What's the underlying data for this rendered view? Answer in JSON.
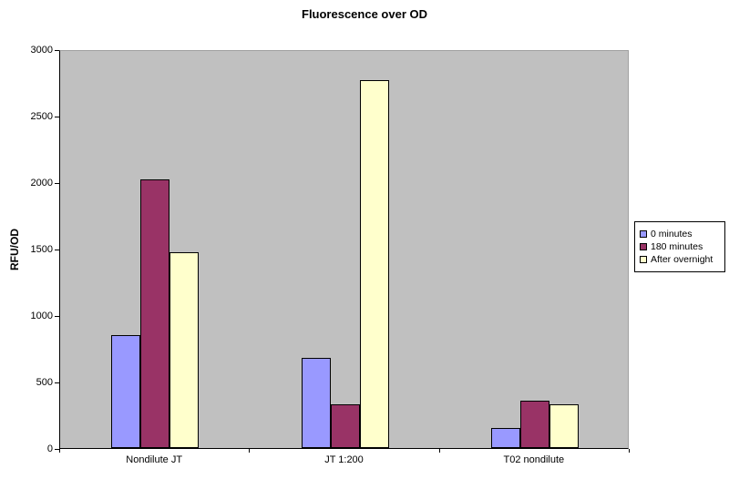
{
  "chart_data": {
    "type": "bar",
    "title": "Fluorescence over OD",
    "xlabel": "",
    "ylabel": "RFU/OD",
    "categories": [
      "Nondilute JT",
      "JT 1:200",
      "T02 nondilute"
    ],
    "series": [
      {
        "name": "0 minutes",
        "color": "#9999FF",
        "values": [
          850,
          680,
          150
        ]
      },
      {
        "name": "180 minutes",
        "color": "#993366",
        "values": [
          2020,
          330,
          355
        ]
      },
      {
        "name": "After overnight",
        "color": "#FFFFCC",
        "values": [
          1470,
          2770,
          330
        ]
      }
    ],
    "ylim": [
      0,
      3000
    ],
    "ytick_step": 500,
    "grid": false,
    "legend_position": "right",
    "plot_bg": "#C0C0C0",
    "chart_bg": "#FFFFFF"
  }
}
